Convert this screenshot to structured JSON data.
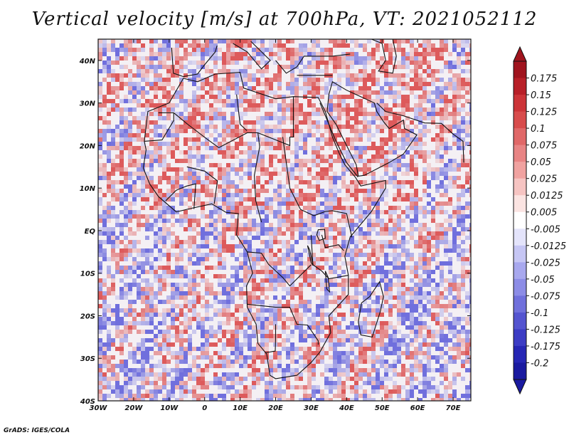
{
  "title": "Vertical velocity [m/s] at 700hPa, VT: 2021052112",
  "credit": "GrADS: IGES/COLA",
  "map": {
    "lon_range": [
      -30,
      75
    ],
    "lat_range": [
      -40,
      45
    ],
    "x_ticks": [
      "30W",
      "20W",
      "10W",
      "0",
      "10E",
      "20E",
      "30E",
      "40E",
      "50E",
      "60E",
      "70E"
    ],
    "y_ticks": [
      "40N",
      "30N",
      "20N",
      "10N",
      "EQ",
      "10S",
      "20S",
      "30S",
      "40S"
    ],
    "field_colors": {
      "positive": "#d84040",
      "negative": "#5858d8",
      "neutral": "#f4f0f4"
    }
  },
  "colorbar": {
    "labels": [
      "0.175",
      "0.15",
      "0.125",
      "0.1",
      "0.075",
      "0.05",
      "0.025",
      "0.0125",
      "0.005",
      "-0.005",
      "-0.0125",
      "-0.025",
      "-0.05",
      "-0.075",
      "-0.1",
      "-0.125",
      "-0.175",
      "-0.2"
    ],
    "colors": [
      "#a0141e",
      "#b82028",
      "#cc3438",
      "#d84c4c",
      "#e06868",
      "#e88484",
      "#f0a2a0",
      "#f6c4c2",
      "#fbe4e2",
      "#ffffff",
      "#e4e4fb",
      "#c6c6f4",
      "#a8a8ee",
      "#8c8ce6",
      "#7070dc",
      "#5454d0",
      "#3c3cc4",
      "#2626b4",
      "#1a1aa0"
    ]
  }
}
